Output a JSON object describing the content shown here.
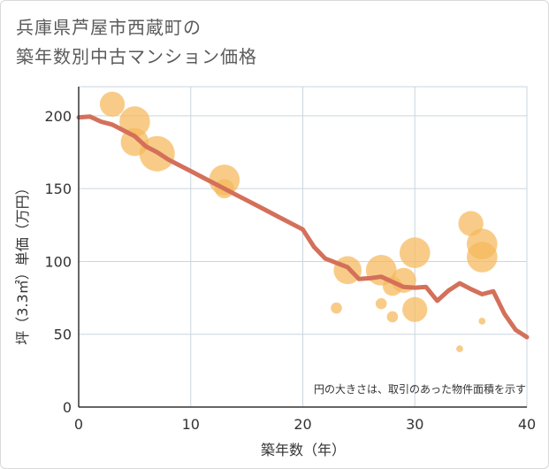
{
  "title_lines": [
    "兵庫県芦屋市西蔵町の",
    "築年数別中古マンション価格"
  ],
  "colors": {
    "line": "#d4705a",
    "bubble": "#f5b95a",
    "grid": "#c9d6df",
    "axis": "#333333"
  },
  "chart_data": {
    "type": "scatter",
    "xlabel": "築年数（年）",
    "ylabel": "坪（3.3㎡）単価（万円）",
    "xlim": [
      0,
      40
    ],
    "ylim": [
      0,
      220
    ],
    "xticks": [
      0,
      10,
      20,
      30,
      40
    ],
    "yticks": [
      0,
      50,
      100,
      150,
      200
    ],
    "grid": true,
    "note": "円の大きさは、取引のあった物件面積を示す",
    "bubbles": [
      {
        "x": 3,
        "y": 208,
        "size": 2
      },
      {
        "x": 5,
        "y": 196,
        "size": 3
      },
      {
        "x": 5,
        "y": 182,
        "size": 2.5
      },
      {
        "x": 7,
        "y": 174,
        "size": 4
      },
      {
        "x": 13,
        "y": 156,
        "size": 3
      },
      {
        "x": 13,
        "y": 150,
        "size": 1.2
      },
      {
        "x": 23,
        "y": 68,
        "size": 0.4
      },
      {
        "x": 24,
        "y": 94,
        "size": 2.5
      },
      {
        "x": 27,
        "y": 94,
        "size": 3
      },
      {
        "x": 27,
        "y": 71,
        "size": 0.4
      },
      {
        "x": 28,
        "y": 83,
        "size": 1.2
      },
      {
        "x": 28,
        "y": 62,
        "size": 0.4
      },
      {
        "x": 29,
        "y": 87,
        "size": 2
      },
      {
        "x": 30,
        "y": 106,
        "size": 3
      },
      {
        "x": 30,
        "y": 67,
        "size": 2
      },
      {
        "x": 34,
        "y": 40,
        "size": 0.15
      },
      {
        "x": 35,
        "y": 126,
        "size": 2
      },
      {
        "x": 36,
        "y": 112,
        "size": 3
      },
      {
        "x": 36,
        "y": 103,
        "size": 3
      },
      {
        "x": 36,
        "y": 59,
        "size": 0.15
      }
    ],
    "trend": {
      "x": [
        0,
        1,
        2,
        3,
        4,
        5,
        6,
        7,
        8,
        9,
        10,
        11,
        12,
        13,
        14,
        15,
        16,
        17,
        18,
        19,
        20,
        21,
        22,
        23,
        24,
        25,
        26,
        27,
        28,
        29,
        30,
        31,
        32,
        33,
        34,
        35,
        36,
        37,
        38,
        39,
        40
      ],
      "y": [
        199,
        199.5,
        196,
        194,
        190,
        186,
        179,
        175,
        170,
        166,
        162,
        158,
        154,
        150,
        146,
        142,
        138,
        134,
        130,
        126,
        122,
        110,
        102,
        99,
        96,
        88,
        88.5,
        89.5,
        86,
        82.5,
        82,
        82.5,
        73,
        80,
        85,
        81,
        77.5,
        79.5,
        64,
        53,
        48
      ]
    }
  }
}
